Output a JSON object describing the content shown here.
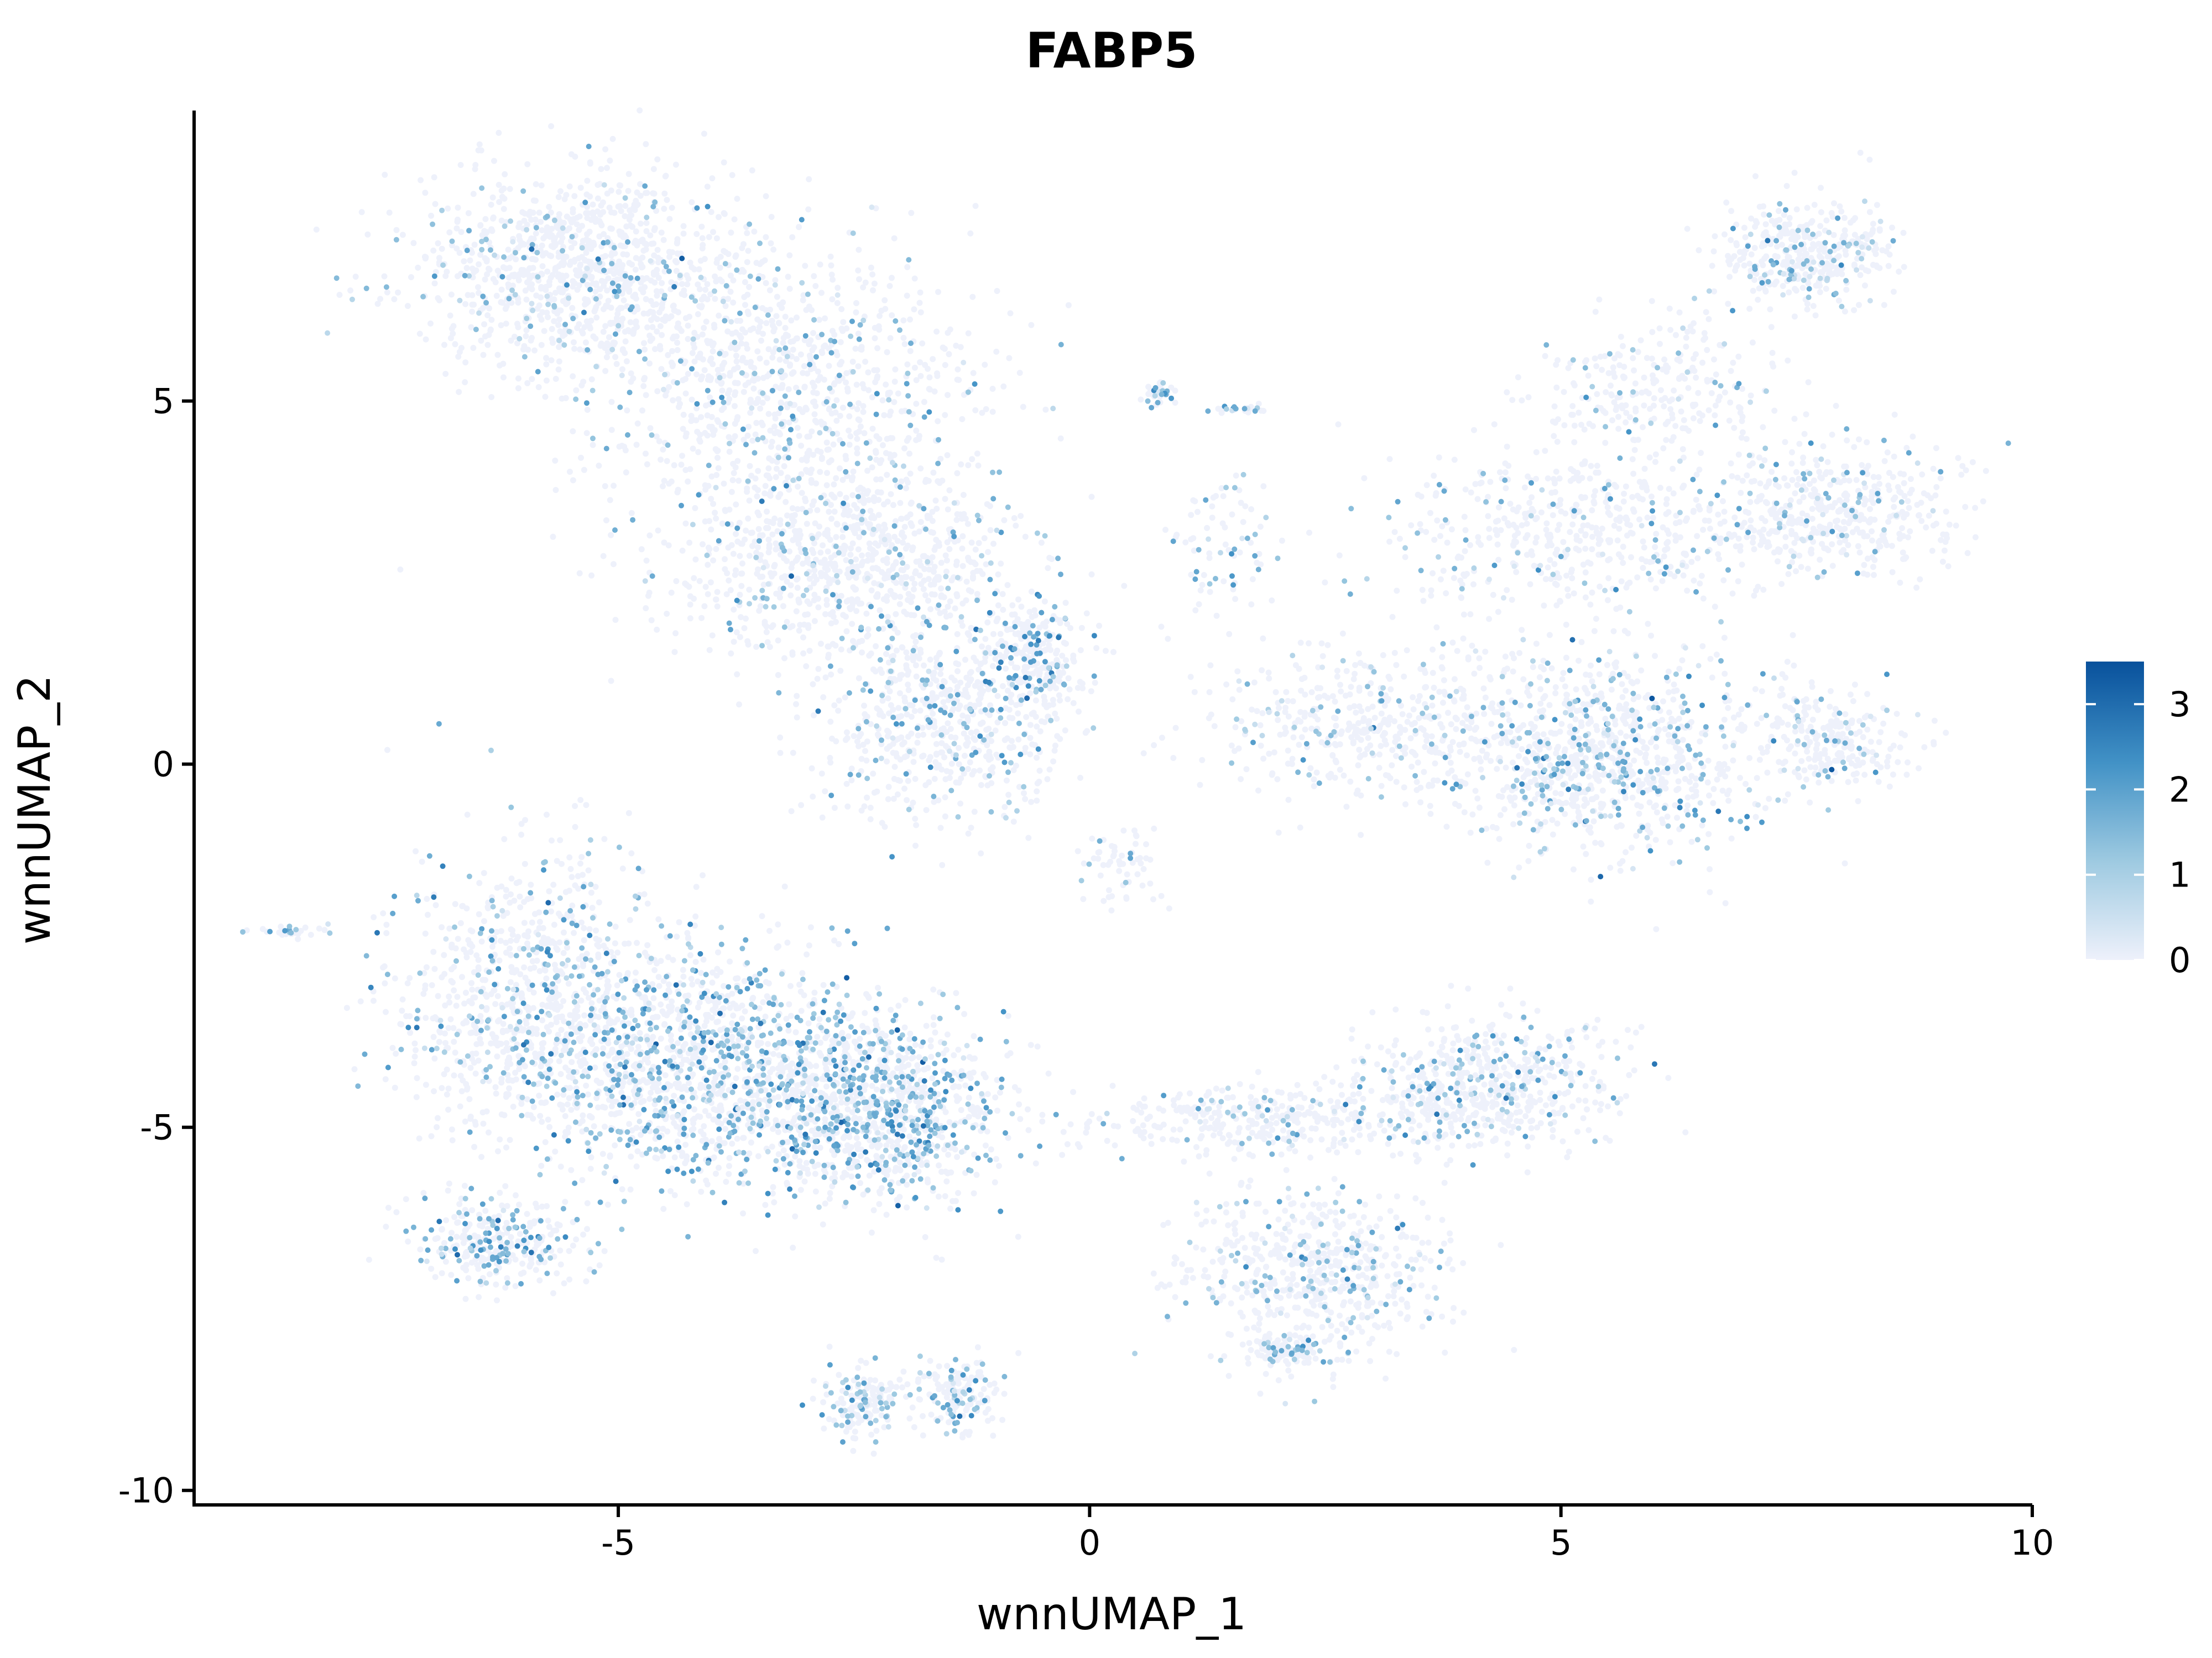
{
  "chart_data": {
    "type": "scatter",
    "title": "FABP5",
    "xlabel": "wnnUMAP_1",
    "ylabel": "wnnUMAP_2",
    "xlim": [
      -9.5,
      10
    ],
    "ylim": [
      -10.2,
      9
    ],
    "x_ticks": [
      -5,
      0,
      5,
      10
    ],
    "x_tick_labels": [
      "-5",
      "0",
      "5",
      "10"
    ],
    "y_ticks": [
      -10,
      -5,
      0,
      5
    ],
    "y_tick_labels": [
      "-10",
      "-5",
      "0",
      "5"
    ],
    "grid": false,
    "legend": {
      "placement": "right",
      "type": "colorbar",
      "min": 0,
      "max": 3.5,
      "ticks": [
        0,
        1,
        2,
        3
      ],
      "tick_labels": [
        "0",
        "1",
        "2",
        "3"
      ],
      "colors": [
        "#eef1fb",
        "#9ecae1",
        "#4292c6",
        "#08519c"
      ]
    },
    "clusters": [
      {
        "cx": -5.3,
        "cy": 6.8,
        "sx": 1.2,
        "sy": 0.9,
        "n": 1100,
        "expr_frac": 0.12,
        "expr_mean": 1.3
      },
      {
        "cx": -3.2,
        "cy": 5.2,
        "sx": 1.4,
        "sy": 1.2,
        "n": 900,
        "expr_frac": 0.14,
        "expr_mean": 1.4
      },
      {
        "cx": -2.6,
        "cy": 2.8,
        "sx": 1.2,
        "sy": 0.9,
        "n": 900,
        "expr_frac": 0.12,
        "expr_mean": 1.3
      },
      {
        "cx": -1.5,
        "cy": 0.6,
        "sx": 0.9,
        "sy": 0.9,
        "n": 650,
        "expr_frac": 0.18,
        "expr_mean": 1.6
      },
      {
        "cx": -0.6,
        "cy": 1.5,
        "sx": 0.4,
        "sy": 0.5,
        "n": 220,
        "expr_frac": 0.3,
        "expr_mean": 1.8
      },
      {
        "cx": 0.75,
        "cy": 5.1,
        "sx": 0.1,
        "sy": 0.1,
        "n": 40,
        "expr_frac": 0.5,
        "expr_mean": 1.6
      },
      {
        "cx": 1.6,
        "cy": 4.9,
        "sx": 0.2,
        "sy": 0.05,
        "n": 25,
        "expr_frac": 0.5,
        "expr_mean": 1.4
      },
      {
        "cx": 1.4,
        "cy": 3.0,
        "sx": 0.4,
        "sy": 0.6,
        "n": 80,
        "expr_frac": 0.3,
        "expr_mean": 1.5
      },
      {
        "cx": 7.6,
        "cy": 7.0,
        "sx": 0.6,
        "sy": 0.5,
        "n": 420,
        "expr_frac": 0.16,
        "expr_mean": 1.3
      },
      {
        "cx": 6.0,
        "cy": 5.2,
        "sx": 0.8,
        "sy": 0.6,
        "n": 250,
        "expr_frac": 0.12,
        "expr_mean": 1.3
      },
      {
        "cx": 5.0,
        "cy": 3.2,
        "sx": 1.3,
        "sy": 0.8,
        "n": 500,
        "expr_frac": 0.12,
        "expr_mean": 1.3
      },
      {
        "cx": 7.8,
        "cy": 3.5,
        "sx": 0.9,
        "sy": 0.6,
        "n": 500,
        "expr_frac": 0.12,
        "expr_mean": 1.3
      },
      {
        "cx": 5.4,
        "cy": 0.1,
        "sx": 1.2,
        "sy": 0.9,
        "n": 950,
        "expr_frac": 0.25,
        "expr_mean": 1.4
      },
      {
        "cx": 3.0,
        "cy": 0.6,
        "sx": 1.2,
        "sy": 0.7,
        "n": 450,
        "expr_frac": 0.12,
        "expr_mean": 1.3
      },
      {
        "cx": 7.9,
        "cy": 0.3,
        "sx": 0.5,
        "sy": 0.5,
        "n": 250,
        "expr_frac": 0.16,
        "expr_mean": 1.3
      },
      {
        "cx": -5.9,
        "cy": -3.2,
        "sx": 1.0,
        "sy": 1.3,
        "n": 900,
        "expr_frac": 0.2,
        "expr_mean": 1.4
      },
      {
        "cx": -4.0,
        "cy": -4.2,
        "sx": 1.3,
        "sy": 1.1,
        "n": 1400,
        "expr_frac": 0.34,
        "expr_mean": 1.6
      },
      {
        "cx": -2.2,
        "cy": -4.8,
        "sx": 0.9,
        "sy": 0.8,
        "n": 900,
        "expr_frac": 0.34,
        "expr_mean": 1.6
      },
      {
        "cx": -6.3,
        "cy": -6.6,
        "sx": 0.6,
        "sy": 0.4,
        "n": 300,
        "expr_frac": 0.3,
        "expr_mean": 1.7
      },
      {
        "cx": -8.5,
        "cy": -2.3,
        "sx": 0.25,
        "sy": 0.05,
        "n": 30,
        "expr_frac": 0.5,
        "expr_mean": 1.5
      },
      {
        "cx": -2.4,
        "cy": -8.8,
        "sx": 0.3,
        "sy": 0.3,
        "n": 160,
        "expr_frac": 0.3,
        "expr_mean": 1.5
      },
      {
        "cx": -1.4,
        "cy": -8.7,
        "sx": 0.3,
        "sy": 0.35,
        "n": 160,
        "expr_frac": 0.3,
        "expr_mean": 1.5
      },
      {
        "cx": 1.8,
        "cy": -4.9,
        "sx": 1.2,
        "sy": 0.3,
        "n": 350,
        "expr_frac": 0.16,
        "expr_mean": 1.3
      },
      {
        "cx": 4.2,
        "cy": -4.4,
        "sx": 0.9,
        "sy": 0.6,
        "n": 600,
        "expr_frac": 0.2,
        "expr_mean": 1.4
      },
      {
        "cx": 2.4,
        "cy": -7.0,
        "sx": 0.9,
        "sy": 0.7,
        "n": 600,
        "expr_frac": 0.2,
        "expr_mean": 1.4
      },
      {
        "cx": 2.1,
        "cy": -8.1,
        "sx": 0.3,
        "sy": 0.2,
        "n": 120,
        "expr_frac": 0.3,
        "expr_mean": 1.5
      },
      {
        "cx": 0.3,
        "cy": -1.4,
        "sx": 0.3,
        "sy": 0.4,
        "n": 60,
        "expr_frac": 0.15,
        "expr_mean": 1.3
      }
    ]
  }
}
